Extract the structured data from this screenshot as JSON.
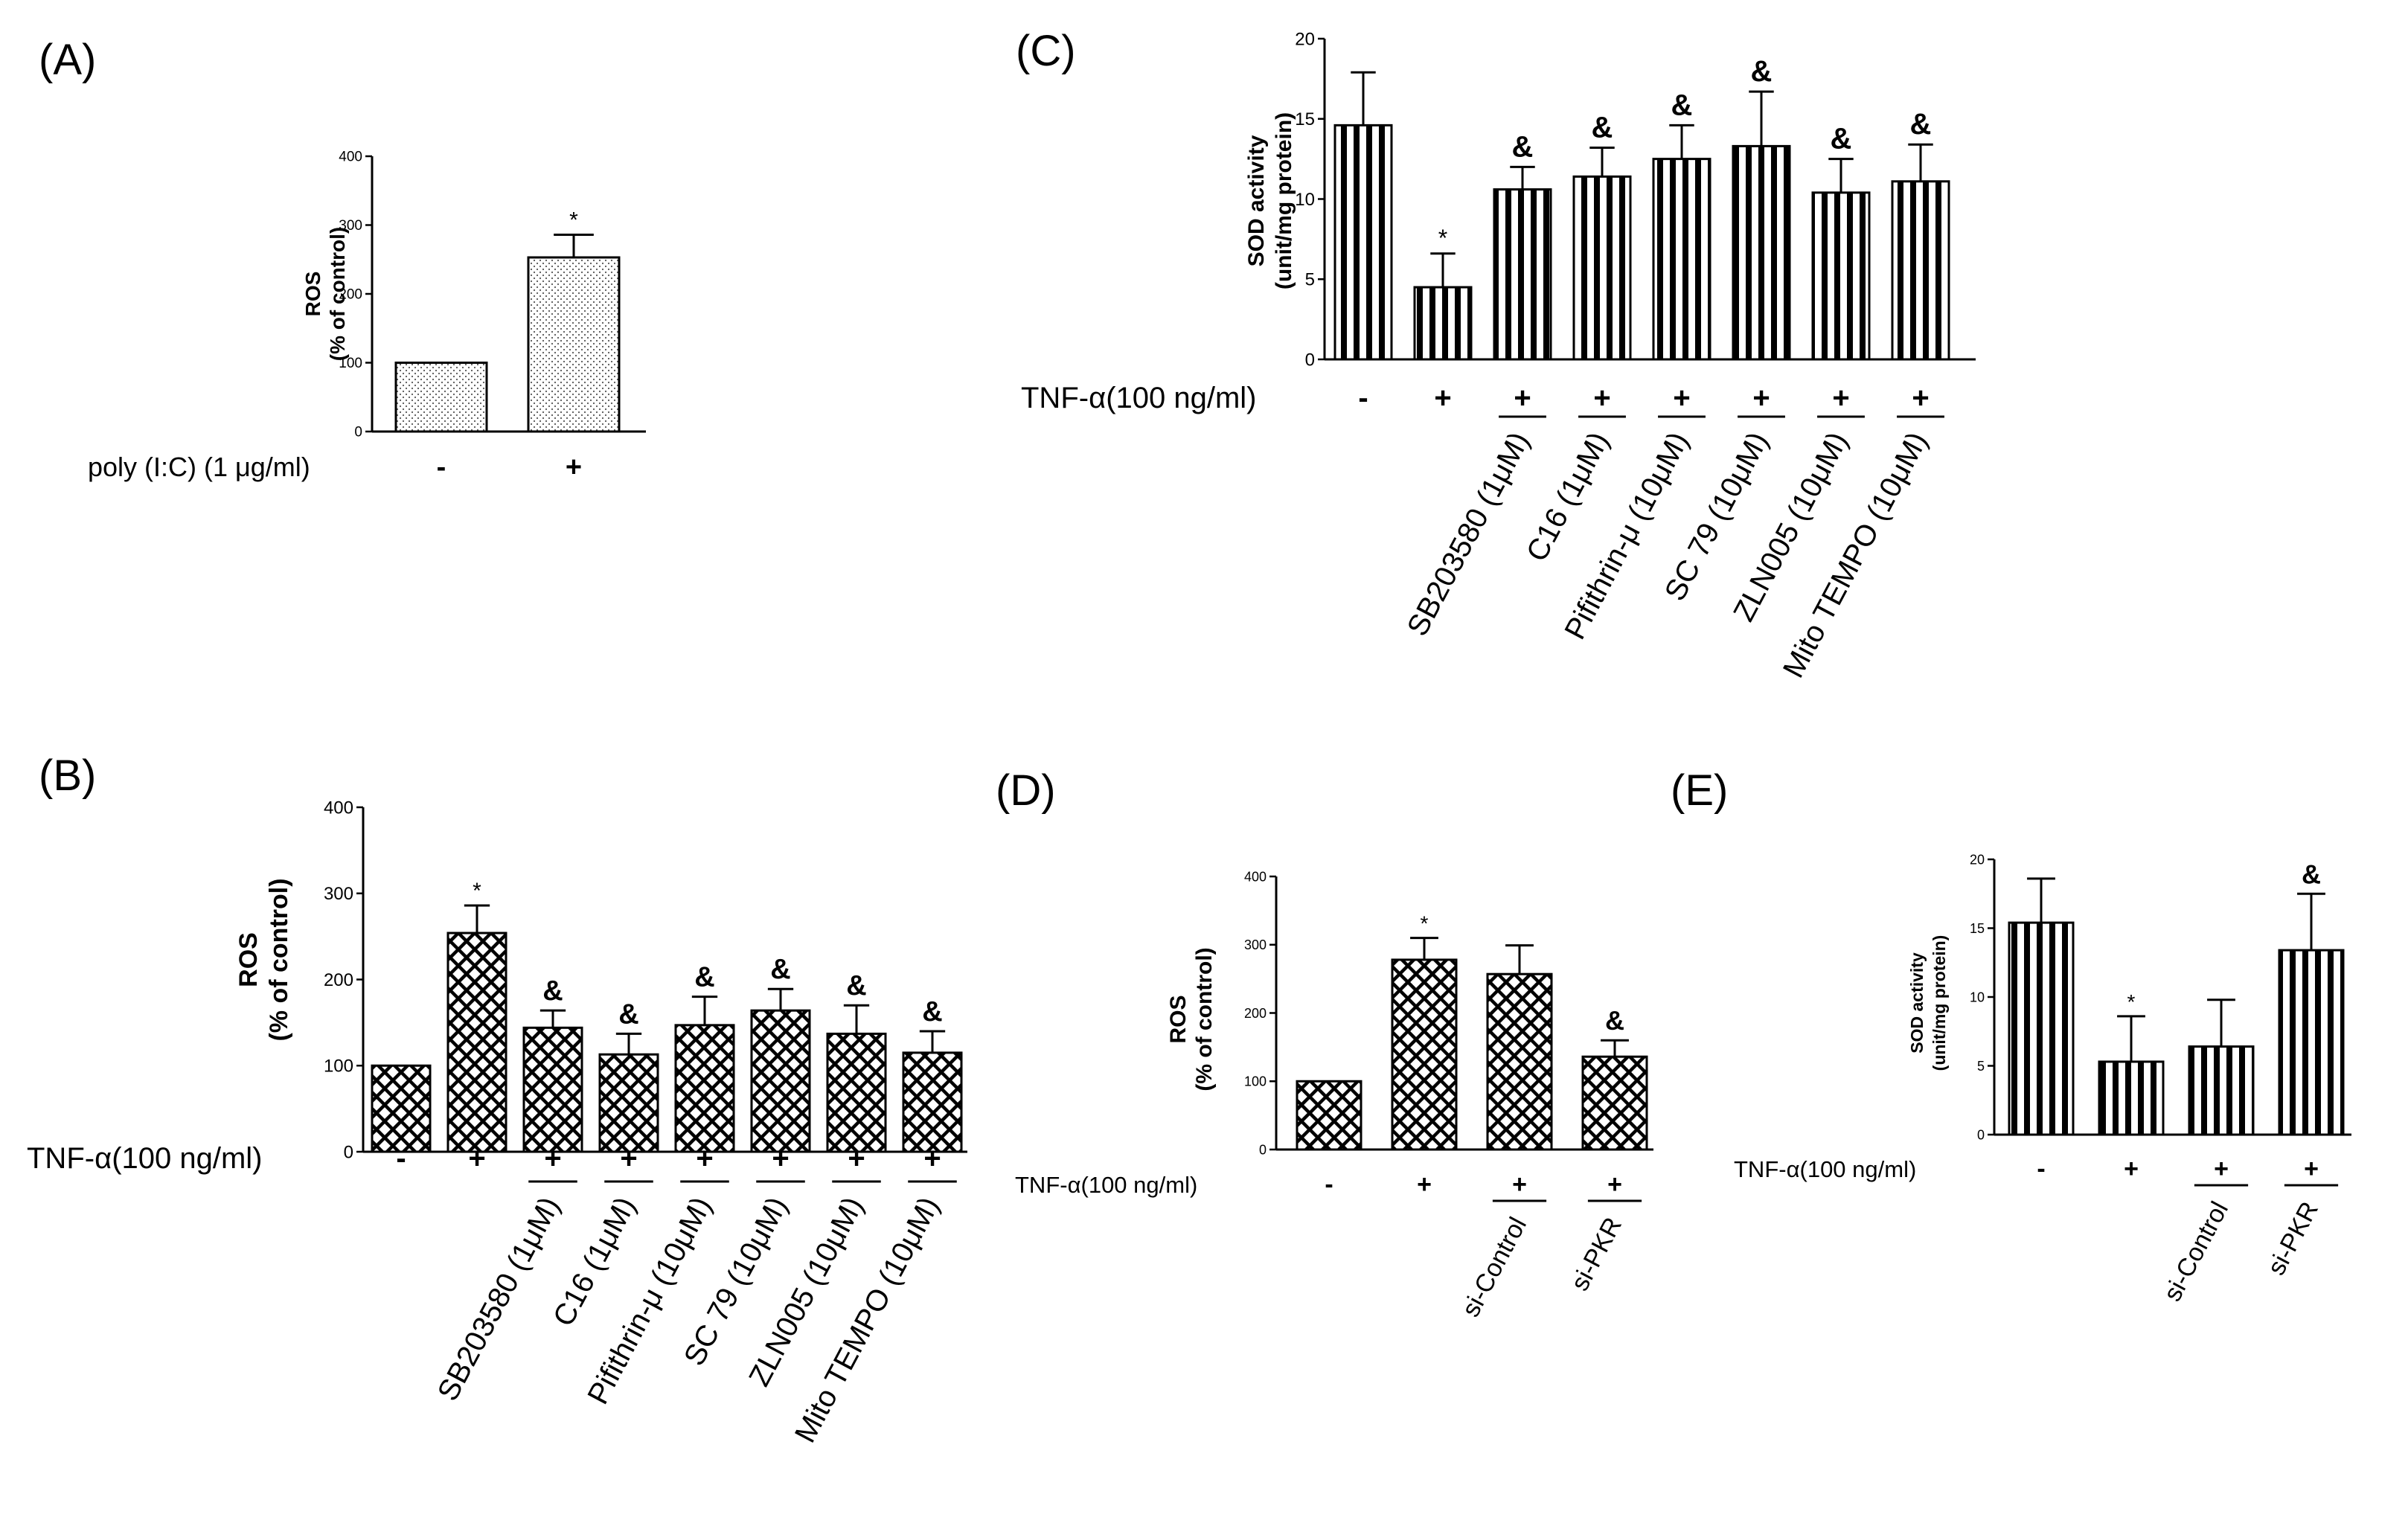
{
  "colors": {
    "ink": "#000000",
    "background": "#ffffff"
  },
  "chart_data": [
    {
      "id": "A",
      "type": "bar",
      "panel_label": "(A)",
      "fill": "dotted",
      "ylabel": [
        "ROS",
        "(% of control)"
      ],
      "ylim": [
        0,
        400
      ],
      "yticks": [
        0,
        100,
        200,
        300,
        400
      ],
      "condition_label": "poly (I:C) (1 μg/ml)",
      "conditions": [
        "-",
        "+"
      ],
      "values": [
        100,
        253
      ],
      "errors": [
        0,
        33
      ],
      "annotations": [
        "",
        "*"
      ],
      "treatments": []
    },
    {
      "id": "B",
      "type": "bar",
      "panel_label": "(B)",
      "fill": "crosshatch",
      "ylabel": [
        "ROS",
        "(% of control)"
      ],
      "ylim": [
        0,
        400
      ],
      "yticks": [
        0,
        100,
        200,
        300,
        400
      ],
      "condition_label": "TNF-α(100 ng/ml)",
      "conditions": [
        "-",
        "+",
        "+",
        "+",
        "+",
        "+",
        "+",
        "+"
      ],
      "values": [
        100,
        254,
        144,
        113,
        147,
        164,
        137,
        115
      ],
      "errors": [
        0,
        32,
        20,
        24,
        33,
        25,
        33,
        25
      ],
      "annotations": [
        "",
        "*",
        "&",
        "&",
        "&",
        "&",
        "&",
        "&"
      ],
      "treatments": [
        "SB203580 (1μM)",
        "C16 (1μM)",
        "Pifithrin-μ (10μM)",
        "SC 79 (10μM)",
        "ZLN005 (10μM)",
        "Mito TEMPO (10μM)"
      ]
    },
    {
      "id": "C",
      "type": "bar",
      "panel_label": "(C)",
      "fill": "vertical-stripes",
      "ylabel": [
        "SOD activity",
        "(unit/mg protein)"
      ],
      "ylim": [
        0,
        20
      ],
      "yticks": [
        0,
        5,
        10,
        15,
        20
      ],
      "condition_label": "TNF-α(100 ng/ml)",
      "conditions": [
        "-",
        "+",
        "+",
        "+",
        "+",
        "+",
        "+",
        "+"
      ],
      "values": [
        14.6,
        4.5,
        10.6,
        11.4,
        12.5,
        13.3,
        10.4,
        11.1
      ],
      "errors": [
        3.3,
        2.1,
        1.4,
        1.8,
        2.1,
        3.4,
        2.1,
        2.3
      ],
      "annotations": [
        "",
        "*",
        "&",
        "&",
        "&",
        "&",
        "&",
        "&"
      ],
      "treatments": [
        "SB203580 (1μM)",
        "C16 (1μM)",
        "Pifithrin-μ (10μM)",
        "SC 79 (10μM)",
        "ZLN005 (10μM)",
        "Mito TEMPO (10μM)"
      ]
    },
    {
      "id": "D",
      "type": "bar",
      "panel_label": "(D)",
      "fill": "crosshatch",
      "ylabel": [
        "ROS",
        "(% of control)"
      ],
      "ylim": [
        0,
        400
      ],
      "yticks": [
        0,
        100,
        200,
        300,
        400
      ],
      "condition_label": "TNF-α(100 ng/ml)",
      "conditions": [
        "-",
        "+",
        "+",
        "+"
      ],
      "values": [
        100,
        278,
        257,
        136
      ],
      "errors": [
        0,
        32,
        42,
        24
      ],
      "annotations": [
        "",
        "*",
        "",
        "&"
      ],
      "treatments": [
        "si-Control",
        "si-PKR"
      ]
    },
    {
      "id": "E",
      "type": "bar",
      "panel_label": "(E)",
      "fill": "vertical-stripes",
      "ylabel": [
        "SOD activity",
        "(unit/mg protein)"
      ],
      "ylim": [
        0,
        20
      ],
      "yticks": [
        0,
        5,
        10,
        15,
        20
      ],
      "condition_label": "TNF-α(100 ng/ml)",
      "conditions": [
        "-",
        "+",
        "+",
        "+"
      ],
      "values": [
        15.4,
        5.3,
        6.4,
        13.4
      ],
      "errors": [
        3.2,
        3.3,
        3.4,
        4.1
      ],
      "annotations": [
        "",
        "*",
        "",
        "&"
      ],
      "treatments": [
        "si-Control",
        "si-PKR"
      ]
    }
  ]
}
